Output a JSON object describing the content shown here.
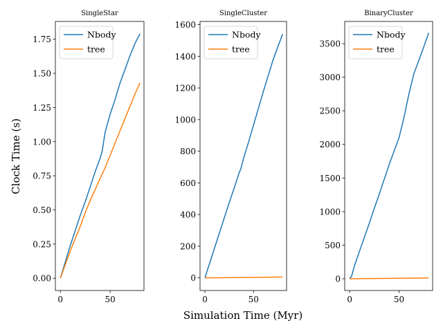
{
  "figure": {
    "ylabel": "Clock Time (s)",
    "xlabel": "Simulation Time (Myr)"
  },
  "chart_data": [
    {
      "type": "line",
      "title": "SingleStar",
      "xlim": [
        -5,
        84
      ],
      "ylim": [
        -0.09,
        1.88
      ],
      "xticks": [
        0,
        50
      ],
      "yticks": [
        0.0,
        0.25,
        0.5,
        0.75,
        1.0,
        1.25,
        1.5,
        1.75
      ],
      "ytick_labels": [
        "0.00",
        "0.25",
        "0.50",
        "0.75",
        "1.00",
        "1.25",
        "1.50",
        "1.75"
      ],
      "legend": {
        "position": "top-left"
      },
      "series": [
        {
          "name": "Nbody",
          "color": "#1f77b4",
          "x": [
            0,
            5,
            10,
            15,
            20,
            25,
            30,
            35,
            40,
            42,
            45,
            50,
            55,
            60,
            65,
            70,
            75,
            80
          ],
          "y": [
            0.0,
            0.12,
            0.24,
            0.35,
            0.46,
            0.56,
            0.67,
            0.78,
            0.88,
            0.93,
            1.07,
            1.2,
            1.31,
            1.43,
            1.53,
            1.63,
            1.72,
            1.79
          ]
        },
        {
          "name": "tree",
          "color": "#ff7f0e",
          "x": [
            0,
            5,
            10,
            15,
            20,
            25,
            30,
            35,
            40,
            45,
            50,
            55,
            60,
            65,
            70,
            75,
            80
          ],
          "y": [
            0.0,
            0.1,
            0.2,
            0.29,
            0.38,
            0.48,
            0.57,
            0.65,
            0.73,
            0.81,
            0.9,
            0.99,
            1.08,
            1.17,
            1.26,
            1.35,
            1.43
          ]
        }
      ]
    },
    {
      "type": "line",
      "title": "SingleCluster",
      "xlim": [
        -5,
        84
      ],
      "ylim": [
        -80,
        1620
      ],
      "xticks": [
        0,
        50
      ],
      "yticks": [
        0,
        200,
        400,
        600,
        800,
        1000,
        1200,
        1400,
        1600
      ],
      "ytick_labels": [
        "0",
        "200",
        "400",
        "600",
        "800",
        "1000",
        "1200",
        "1400",
        "1600"
      ],
      "legend": {
        "position": "top-left"
      },
      "series": [
        {
          "name": "Nbody",
          "color": "#1f77b4",
          "x": [
            0,
            5,
            10,
            15,
            20,
            25,
            30,
            35,
            37,
            40,
            45,
            50,
            55,
            60,
            65,
            70,
            75,
            80
          ],
          "y": [
            0,
            95,
            190,
            285,
            380,
            475,
            565,
            660,
            690,
            760,
            860,
            965,
            1070,
            1175,
            1275,
            1375,
            1460,
            1540
          ]
        },
        {
          "name": "tree",
          "color": "#ff7f0e",
          "x": [
            0,
            80
          ],
          "y": [
            0,
            5
          ]
        }
      ]
    },
    {
      "type": "line",
      "title": "BinaryCluster",
      "xlim": [
        -5,
        84
      ],
      "ylim": [
        -175,
        3830
      ],
      "xticks": [
        0,
        50
      ],
      "yticks": [
        0,
        500,
        1000,
        1500,
        2000,
        2500,
        3000,
        3500
      ],
      "ytick_labels": [
        "0",
        "500",
        "1000",
        "1500",
        "2000",
        "2500",
        "3000",
        "3500"
      ],
      "legend": {
        "position": "top-left"
      },
      "series": [
        {
          "name": "Nbody",
          "color": "#1f77b4",
          "x": [
            0,
            2,
            5,
            10,
            15,
            20,
            25,
            30,
            35,
            40,
            45,
            50,
            55,
            60,
            65,
            70,
            75,
            80
          ],
          "y": [
            0,
            40,
            200,
            410,
            620,
            830,
            1050,
            1260,
            1480,
            1700,
            1900,
            2100,
            2400,
            2750,
            3050,
            3250,
            3450,
            3660
          ]
        },
        {
          "name": "tree",
          "color": "#ff7f0e",
          "x": [
            0,
            80
          ],
          "y": [
            0,
            12
          ]
        }
      ]
    }
  ]
}
